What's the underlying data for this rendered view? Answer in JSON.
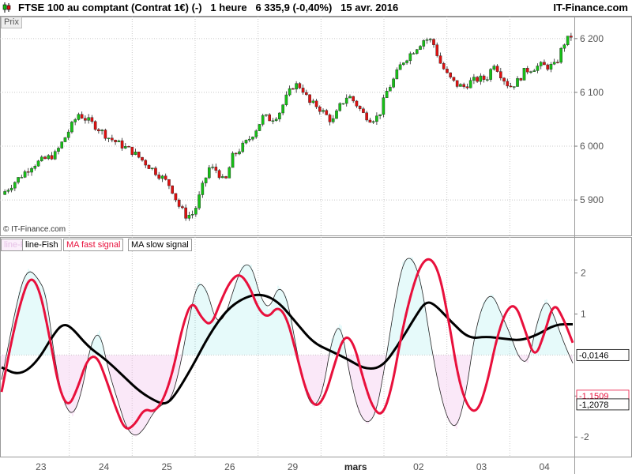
{
  "header": {
    "title": "FTSE 100 au comptant (Contrat 1€) (-)   1 heure   6 335,9 (-0,40%)   15 avr. 2016",
    "brand": "IT-Finance.com"
  },
  "price_panel": {
    "tag": "Prix",
    "credit": "© IT-Finance.com"
  },
  "indicator_panel": {
    "legend": [
      "line-Fish",
      "line-Fish",
      "MA fast signal",
      "MA slow signal"
    ],
    "value_tags": {
      "current": "-0,0146",
      "fast": "-1,1509",
      "slow": "-1,2078"
    }
  },
  "colors": {
    "up": "#16c016",
    "down": "#e01010",
    "fast": "#e8103c",
    "slow": "#000000",
    "pos_fill": "#ccf4f6",
    "neg_fill": "#f6d2f0",
    "grid": "#c8c8c8"
  },
  "chart_data": [
    {
      "type": "candlestick",
      "title": "FTSE 100 au comptant (Contrat 1€) (-)",
      "timeframe": "1 heure",
      "ylim": [
        5840,
        6235
      ],
      "yticks": [
        5900,
        6000,
        6100,
        6200
      ],
      "ytick_labels": [
        "5 900",
        "6 000",
        "6 100",
        "6 200"
      ],
      "x_labels": [
        "23",
        "24",
        "25",
        "26",
        "29",
        "mars",
        "02",
        "03",
        "04"
      ],
      "close_path": [
        [
          0,
          5910
        ],
        [
          4,
          5965
        ],
        [
          7,
          5985
        ],
        [
          10,
          6060
        ],
        [
          12,
          6040
        ],
        [
          14,
          6015
        ],
        [
          17,
          5990
        ],
        [
          19,
          5965
        ],
        [
          21,
          5940
        ],
        [
          22,
          5925
        ],
        [
          23,
          5890
        ],
        [
          24,
          5870
        ],
        [
          25,
          5875
        ],
        [
          26,
          5920
        ],
        [
          27,
          5960
        ],
        [
          28,
          5955
        ],
        [
          29,
          5930
        ],
        [
          30,
          5980
        ],
        [
          32,
          6010
        ],
        [
          33,
          6030
        ],
        [
          34,
          6055
        ],
        [
          35,
          6050
        ],
        [
          36,
          6060
        ],
        [
          37,
          6090
        ],
        [
          38,
          6115
        ],
        [
          39,
          6110
        ],
        [
          40,
          6080
        ],
        [
          41,
          6075
        ],
        [
          42,
          6060
        ],
        [
          43,
          6045
        ],
        [
          44,
          6075
        ],
        [
          45,
          6095
        ],
        [
          46,
          6080
        ],
        [
          47,
          6060
        ],
        [
          48,
          6050
        ],
        [
          49,
          6055
        ],
        [
          50,
          6100
        ],
        [
          51,
          6125
        ],
        [
          52,
          6155
        ],
        [
          53,
          6170
        ],
        [
          54,
          6185
        ],
        [
          55,
          6200
        ],
        [
          56,
          6195
        ],
        [
          57,
          6155
        ],
        [
          58,
          6130
        ],
        [
          59,
          6115
        ],
        [
          60,
          6110
        ],
        [
          61,
          6120
        ],
        [
          62,
          6125
        ],
        [
          63,
          6125
        ],
        [
          64,
          6155
        ],
        [
          65,
          6130
        ],
        [
          66,
          6110
        ],
        [
          67,
          6120
        ],
        [
          68,
          6140
        ],
        [
          69,
          6145
        ],
        [
          70,
          6150
        ],
        [
          71,
          6148
        ],
        [
          72,
          6150
        ],
        [
          73,
          6190
        ],
        [
          74,
          6205
        ]
      ],
      "last": 6335.9,
      "change_pct": "-0,40%"
    },
    {
      "type": "line",
      "series": [
        {
          "name": "line-Fish",
          "style": "filled-histogram",
          "points": [
            [
              0,
              -0.6
            ],
            [
              2,
              1.6
            ],
            [
              3,
              2.1
            ],
            [
              4,
              1.9
            ],
            [
              5,
              1.5
            ],
            [
              6,
              -0.2
            ],
            [
              7,
              -1.2
            ],
            [
              8,
              -1.5
            ],
            [
              9,
              -0.9
            ],
            [
              10,
              0.3
            ],
            [
              11,
              0.6
            ],
            [
              12,
              -0.4
            ],
            [
              13,
              -1.1
            ],
            [
              14,
              -1.8
            ],
            [
              15,
              -2.0
            ],
            [
              16,
              -1.8
            ],
            [
              17,
              -1.4
            ],
            [
              18,
              -1.2
            ],
            [
              19,
              -1.1
            ],
            [
              20,
              -0.3
            ],
            [
              21,
              0.9
            ],
            [
              22,
              1.8
            ],
            [
              23,
              1.6
            ],
            [
              24,
              0.8
            ],
            [
              25,
              0.9
            ],
            [
              26,
              1.6
            ],
            [
              27,
              2.2
            ],
            [
              28,
              2.2
            ],
            [
              29,
              1.4
            ],
            [
              30,
              1.1
            ],
            [
              31,
              1.7
            ],
            [
              32,
              1.4
            ],
            [
              33,
              0.2
            ],
            [
              34,
              -0.9
            ],
            [
              35,
              -1.3
            ],
            [
              36,
              -0.9
            ],
            [
              37,
              0.4
            ],
            [
              38,
              0.8
            ],
            [
              39,
              -0.5
            ],
            [
              40,
              -1.4
            ],
            [
              41,
              -1.7
            ],
            [
              42,
              -1.4
            ],
            [
              43,
              -0.2
            ],
            [
              44,
              1.2
            ],
            [
              45,
              2.3
            ],
            [
              46,
              2.4
            ],
            [
              47,
              1.8
            ],
            [
              48,
              0.4
            ],
            [
              49,
              -0.8
            ],
            [
              50,
              -1.6
            ],
            [
              51,
              -1.8
            ],
            [
              52,
              -1.0
            ],
            [
              53,
              0.5
            ],
            [
              54,
              1.3
            ],
            [
              55,
              1.5
            ],
            [
              56,
              1.0
            ],
            [
              57,
              0.5
            ],
            [
              58,
              -0.1
            ],
            [
              59,
              -0.2
            ],
            [
              60,
              0.8
            ],
            [
              61,
              1.4
            ],
            [
              62,
              0.9
            ],
            [
              63,
              0.3
            ],
            [
              64,
              -0.2
            ]
          ]
        },
        {
          "name": "MA fast signal",
          "points": [
            [
              0,
              -0.9
            ],
            [
              1,
              0.3
            ],
            [
              2,
              1.3
            ],
            [
              3,
              1.95
            ],
            [
              4,
              1.6
            ],
            [
              5,
              0.5
            ],
            [
              6,
              -0.8
            ],
            [
              7,
              -1.3
            ],
            [
              8,
              -0.8
            ],
            [
              9,
              -0.1
            ],
            [
              10,
              0.0
            ],
            [
              11,
              -0.6
            ],
            [
              12,
              -1.3
            ],
            [
              13,
              -1.85
            ],
            [
              14,
              -1.7
            ],
            [
              15,
              -1.3
            ],
            [
              16,
              -1.4
            ],
            [
              17,
              -1.1
            ],
            [
              18,
              -0.4
            ],
            [
              19,
              0.7
            ],
            [
              20,
              1.35
            ],
            [
              21,
              0.9
            ],
            [
              22,
              0.7
            ],
            [
              23,
              1.3
            ],
            [
              24,
              1.8
            ],
            [
              25,
              2.0
            ],
            [
              26,
              1.7
            ],
            [
              27,
              1.1
            ],
            [
              28,
              0.9
            ],
            [
              29,
              1.2
            ],
            [
              30,
              0.9
            ],
            [
              31,
              0.0
            ],
            [
              32,
              -0.9
            ],
            [
              33,
              -1.3
            ],
            [
              34,
              -1.0
            ],
            [
              35,
              -0.2
            ],
            [
              36,
              0.5
            ],
            [
              37,
              0.3
            ],
            [
              38,
              -0.6
            ],
            [
              39,
              -1.3
            ],
            [
              40,
              -1.5
            ],
            [
              41,
              -0.8
            ],
            [
              42,
              0.5
            ],
            [
              43,
              1.5
            ],
            [
              44,
              2.2
            ],
            [
              45,
              2.4
            ],
            [
              46,
              2.0
            ],
            [
              47,
              0.8
            ],
            [
              48,
              -0.6
            ],
            [
              49,
              -1.3
            ],
            [
              50,
              -1.4
            ],
            [
              51,
              -0.7
            ],
            [
              52,
              0.4
            ],
            [
              53,
              1.1
            ],
            [
              54,
              1.25
            ],
            [
              55,
              0.6
            ],
            [
              56,
              -0.1
            ],
            [
              57,
              0.5
            ],
            [
              58,
              1.3
            ],
            [
              59,
              0.9
            ],
            [
              60,
              0.3
            ]
          ]
        },
        {
          "name": "MA slow signal",
          "points": [
            [
              0,
              -0.3
            ],
            [
              2,
              -0.5
            ],
            [
              4,
              -0.2
            ],
            [
              6,
              0.5
            ],
            [
              7,
              0.75
            ],
            [
              8,
              0.7
            ],
            [
              10,
              0.2
            ],
            [
              12,
              -0.1
            ],
            [
              14,
              -0.5
            ],
            [
              16,
              -0.9
            ],
            [
              18,
              -1.15
            ],
            [
              19,
              -1.2
            ],
            [
              20,
              -1.0
            ],
            [
              22,
              -0.3
            ],
            [
              24,
              0.5
            ],
            [
              26,
              1.1
            ],
            [
              28,
              1.4
            ],
            [
              30,
              1.5
            ],
            [
              32,
              1.3
            ],
            [
              34,
              0.8
            ],
            [
              36,
              0.3
            ],
            [
              38,
              0.1
            ],
            [
              40,
              -0.1
            ],
            [
              42,
              -0.35
            ],
            [
              44,
              -0.3
            ],
            [
              46,
              0.3
            ],
            [
              48,
              1.0
            ],
            [
              49,
              1.3
            ],
            [
              50,
              1.25
            ],
            [
              52,
              0.8
            ],
            [
              54,
              0.4
            ],
            [
              56,
              0.45
            ],
            [
              58,
              0.4
            ],
            [
              60,
              0.35
            ],
            [
              62,
              0.5
            ],
            [
              64,
              0.75
            ],
            [
              66,
              0.75
            ]
          ]
        }
      ],
      "ylim": [
        -2.4,
        2.8
      ],
      "yticks": [
        -2,
        -1,
        1,
        2
      ],
      "ytick_labels": [
        "-2",
        "-1",
        "1",
        "2"
      ],
      "x_labels": [
        "23",
        "24",
        "25",
        "26",
        "29",
        "mars",
        "02",
        "03",
        "04"
      ]
    }
  ]
}
